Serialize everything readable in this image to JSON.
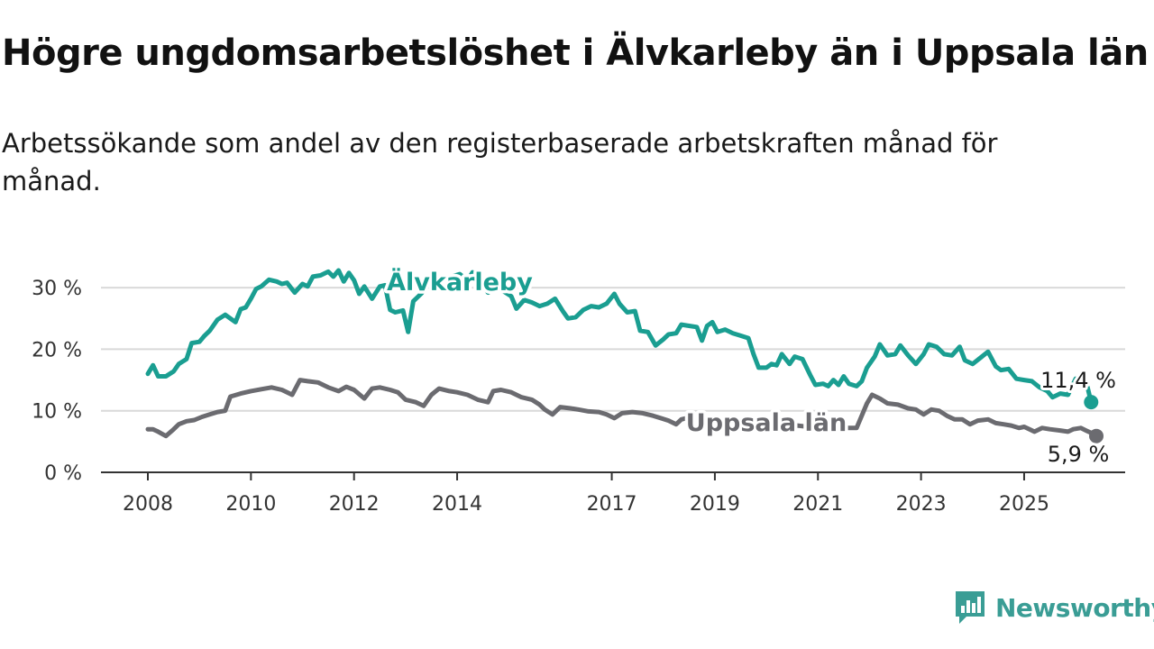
{
  "title": "Högre ungdomsarbetslöshet i Älvkarleby än i Uppsala län",
  "subtitle": "Arbetssökande som andel av den registerbaserade arbetskraften månad för månad.",
  "brand": {
    "name": "Newsworthy"
  },
  "colors": {
    "alvkarleby": "#1a9e91",
    "uppsala": "#6b6b70",
    "grid": "#d9d9d9",
    "axis": "#333333"
  },
  "chart_data": {
    "type": "line",
    "ylim": [
      0,
      35
    ],
    "yticks": [
      0,
      10,
      20,
      30
    ],
    "ytick_labels": [
      "0 %",
      "10 %",
      "20 %",
      "30 %"
    ],
    "xlim": [
      2008,
      2026.4
    ],
    "xticks": [
      2008,
      2010,
      2012,
      2014,
      2017,
      2019,
      2021,
      2023,
      2025
    ],
    "xtick_labels": [
      "2008",
      "2010",
      "2012",
      "2014",
      "2017",
      "2019",
      "2021",
      "2023",
      "2025"
    ],
    "grid": true,
    "series": [
      {
        "name": "Älvkarleby",
        "color": "#1a9e91",
        "end_label": "11,4 %",
        "points": [
          [
            2008.0,
            16.0
          ],
          [
            2008.1,
            17.4
          ],
          [
            2008.2,
            15.6
          ],
          [
            2008.35,
            15.6
          ],
          [
            2008.5,
            16.4
          ],
          [
            2008.6,
            17.6
          ],
          [
            2008.75,
            18.4
          ],
          [
            2008.85,
            21.0
          ],
          [
            2009.0,
            21.2
          ],
          [
            2009.1,
            22.2
          ],
          [
            2009.2,
            23.0
          ],
          [
            2009.35,
            24.8
          ],
          [
            2009.5,
            25.6
          ],
          [
            2009.6,
            25.0
          ],
          [
            2009.7,
            24.4
          ],
          [
            2009.8,
            26.5
          ],
          [
            2009.9,
            26.8
          ],
          [
            2010.0,
            28.2
          ],
          [
            2010.1,
            29.8
          ],
          [
            2010.2,
            30.2
          ],
          [
            2010.35,
            31.3
          ],
          [
            2010.5,
            31.0
          ],
          [
            2010.6,
            30.6
          ],
          [
            2010.7,
            30.8
          ],
          [
            2010.85,
            29.2
          ],
          [
            2011.0,
            30.6
          ],
          [
            2011.1,
            30.2
          ],
          [
            2011.2,
            31.8
          ],
          [
            2011.35,
            32.0
          ],
          [
            2011.5,
            32.6
          ],
          [
            2011.6,
            31.8
          ],
          [
            2011.7,
            32.8
          ],
          [
            2011.8,
            31.0
          ],
          [
            2011.9,
            32.4
          ],
          [
            2012.0,
            31.2
          ],
          [
            2012.1,
            29.0
          ],
          [
            2012.2,
            30.2
          ],
          [
            2012.35,
            28.2
          ],
          [
            2012.5,
            30.2
          ],
          [
            2012.6,
            30.4
          ],
          [
            2012.7,
            26.4
          ],
          [
            2012.8,
            26.0
          ],
          [
            2012.95,
            26.3
          ],
          [
            2013.05,
            22.8
          ],
          [
            2013.15,
            27.8
          ],
          [
            2013.3,
            29.0
          ],
          [
            2013.5,
            31.0
          ],
          [
            2013.7,
            31.5
          ],
          [
            2013.9,
            31.8
          ],
          [
            2014.05,
            32.2
          ],
          [
            2014.2,
            31.2
          ],
          [
            2014.3,
            32.5
          ],
          [
            2014.45,
            31.0
          ],
          [
            2014.6,
            29.2
          ],
          [
            2014.75,
            30.0
          ],
          [
            2014.9,
            29.4
          ],
          [
            2015.05,
            28.6
          ],
          [
            2015.15,
            26.6
          ],
          [
            2015.3,
            28.0
          ],
          [
            2015.45,
            27.6
          ],
          [
            2015.6,
            27.0
          ],
          [
            2015.75,
            27.4
          ],
          [
            2015.9,
            28.2
          ],
          [
            2016.05,
            26.2
          ],
          [
            2016.15,
            25.0
          ],
          [
            2016.3,
            25.2
          ],
          [
            2016.45,
            26.4
          ],
          [
            2016.6,
            27.0
          ],
          [
            2016.75,
            26.8
          ],
          [
            2016.9,
            27.4
          ],
          [
            2017.05,
            29.0
          ],
          [
            2017.15,
            27.4
          ],
          [
            2017.3,
            26.0
          ],
          [
            2017.45,
            26.2
          ],
          [
            2017.55,
            23.0
          ],
          [
            2017.7,
            22.8
          ],
          [
            2017.85,
            20.6
          ],
          [
            2018.0,
            21.6
          ],
          [
            2018.1,
            22.4
          ],
          [
            2018.25,
            22.6
          ],
          [
            2018.35,
            24.0
          ],
          [
            2018.5,
            23.8
          ],
          [
            2018.65,
            23.6
          ],
          [
            2018.75,
            21.4
          ],
          [
            2018.85,
            23.8
          ],
          [
            2018.95,
            24.4
          ],
          [
            2019.05,
            22.8
          ],
          [
            2019.2,
            23.2
          ],
          [
            2019.35,
            22.6
          ],
          [
            2019.5,
            22.2
          ],
          [
            2019.65,
            21.8
          ],
          [
            2019.75,
            19.2
          ],
          [
            2019.85,
            17.0
          ],
          [
            2020.0,
            17.0
          ],
          [
            2020.1,
            17.6
          ],
          [
            2020.2,
            17.4
          ],
          [
            2020.3,
            19.2
          ],
          [
            2020.45,
            17.6
          ],
          [
            2020.55,
            18.8
          ],
          [
            2020.7,
            18.4
          ],
          [
            2020.85,
            15.8
          ],
          [
            2020.95,
            14.2
          ],
          [
            2021.1,
            14.4
          ],
          [
            2021.2,
            14.0
          ],
          [
            2021.3,
            15.0
          ],
          [
            2021.4,
            14.2
          ],
          [
            2021.5,
            15.6
          ],
          [
            2021.6,
            14.4
          ],
          [
            2021.75,
            14.0
          ],
          [
            2021.85,
            14.8
          ],
          [
            2021.95,
            17.0
          ],
          [
            2022.1,
            18.8
          ],
          [
            2022.2,
            20.8
          ],
          [
            2022.35,
            19.0
          ],
          [
            2022.5,
            19.2
          ],
          [
            2022.6,
            20.6
          ],
          [
            2022.75,
            19.0
          ],
          [
            2022.9,
            17.6
          ],
          [
            2023.05,
            19.2
          ],
          [
            2023.15,
            20.8
          ],
          [
            2023.3,
            20.4
          ],
          [
            2023.45,
            19.2
          ],
          [
            2023.6,
            19.0
          ],
          [
            2023.75,
            20.4
          ],
          [
            2023.85,
            18.2
          ],
          [
            2024.0,
            17.6
          ],
          [
            2024.15,
            18.6
          ],
          [
            2024.3,
            19.6
          ],
          [
            2024.45,
            17.2
          ],
          [
            2024.55,
            16.6
          ],
          [
            2024.7,
            16.8
          ],
          [
            2024.85,
            15.2
          ],
          [
            2025.0,
            15.0
          ],
          [
            2025.15,
            14.8
          ],
          [
            2025.3,
            13.8
          ],
          [
            2025.45,
            13.2
          ],
          [
            2025.55,
            12.2
          ],
          [
            2025.7,
            12.8
          ],
          [
            2025.85,
            12.6
          ],
          [
            2026.0,
            15.2
          ],
          [
            2026.1,
            15.0
          ],
          [
            2026.2,
            14.8
          ],
          [
            2026.3,
            11.4
          ]
        ]
      },
      {
        "name": "Uppsala län",
        "color": "#6b6b70",
        "end_label": "5,9 %",
        "points": [
          [
            2008.0,
            7.0
          ],
          [
            2008.1,
            7.0
          ],
          [
            2008.2,
            6.6
          ],
          [
            2008.35,
            5.9
          ],
          [
            2008.5,
            7.0
          ],
          [
            2008.6,
            7.8
          ],
          [
            2008.75,
            8.3
          ],
          [
            2008.9,
            8.5
          ],
          [
            2009.05,
            9.0
          ],
          [
            2009.2,
            9.4
          ],
          [
            2009.35,
            9.8
          ],
          [
            2009.5,
            10.0
          ],
          [
            2009.6,
            12.3
          ],
          [
            2009.8,
            12.8
          ],
          [
            2010.0,
            13.2
          ],
          [
            2010.2,
            13.5
          ],
          [
            2010.4,
            13.8
          ],
          [
            2010.6,
            13.4
          ],
          [
            2010.8,
            12.6
          ],
          [
            2010.95,
            15.0
          ],
          [
            2011.1,
            14.8
          ],
          [
            2011.3,
            14.6
          ],
          [
            2011.5,
            13.8
          ],
          [
            2011.7,
            13.2
          ],
          [
            2011.85,
            13.9
          ],
          [
            2012.0,
            13.4
          ],
          [
            2012.2,
            12.0
          ],
          [
            2012.35,
            13.6
          ],
          [
            2012.5,
            13.8
          ],
          [
            2012.7,
            13.4
          ],
          [
            2012.85,
            13.0
          ],
          [
            2013.0,
            11.8
          ],
          [
            2013.2,
            11.4
          ],
          [
            2013.35,
            10.8
          ],
          [
            2013.5,
            12.6
          ],
          [
            2013.65,
            13.6
          ],
          [
            2013.85,
            13.2
          ],
          [
            2014.0,
            13.0
          ],
          [
            2014.2,
            12.6
          ],
          [
            2014.4,
            11.8
          ],
          [
            2014.6,
            11.4
          ],
          [
            2014.7,
            13.2
          ],
          [
            2014.85,
            13.4
          ],
          [
            2015.05,
            13.0
          ],
          [
            2015.25,
            12.2
          ],
          [
            2015.45,
            11.8
          ],
          [
            2015.6,
            11.0
          ],
          [
            2015.7,
            10.2
          ],
          [
            2015.85,
            9.4
          ],
          [
            2016.0,
            10.6
          ],
          [
            2016.2,
            10.4
          ],
          [
            2016.35,
            10.2
          ],
          [
            2016.55,
            9.9
          ],
          [
            2016.75,
            9.8
          ],
          [
            2016.9,
            9.4
          ],
          [
            2017.05,
            8.8
          ],
          [
            2017.2,
            9.6
          ],
          [
            2017.4,
            9.8
          ],
          [
            2017.6,
            9.6
          ],
          [
            2017.8,
            9.2
          ],
          [
            2017.95,
            8.8
          ],
          [
            2018.1,
            8.4
          ],
          [
            2018.25,
            7.8
          ],
          [
            2018.35,
            8.6
          ],
          [
            2018.55,
            9.0
          ],
          [
            2018.75,
            8.6
          ],
          [
            2018.9,
            8.6
          ],
          [
            2019.05,
            8.0
          ],
          [
            2019.2,
            7.6
          ],
          [
            2019.35,
            8.4
          ],
          [
            2019.55,
            8.5
          ],
          [
            2019.7,
            8.6
          ],
          [
            2019.85,
            8.2
          ],
          [
            2020.0,
            7.6
          ],
          [
            2020.3,
            7.4
          ],
          [
            2020.6,
            7.6
          ],
          [
            2020.9,
            7.3
          ],
          [
            2021.2,
            7.0
          ],
          [
            2021.5,
            7.2
          ],
          [
            2021.75,
            7.2
          ],
          [
            2021.95,
            11.2
          ],
          [
            2022.05,
            12.6
          ],
          [
            2022.2,
            12.0
          ],
          [
            2022.35,
            11.2
          ],
          [
            2022.55,
            11.0
          ],
          [
            2022.75,
            10.4
          ],
          [
            2022.9,
            10.2
          ],
          [
            2023.05,
            9.4
          ],
          [
            2023.2,
            10.2
          ],
          [
            2023.35,
            10.0
          ],
          [
            2023.5,
            9.2
          ],
          [
            2023.65,
            8.6
          ],
          [
            2023.8,
            8.6
          ],
          [
            2023.95,
            7.8
          ],
          [
            2024.1,
            8.4
          ],
          [
            2024.3,
            8.6
          ],
          [
            2024.45,
            8.0
          ],
          [
            2024.6,
            7.8
          ],
          [
            2024.75,
            7.6
          ],
          [
            2024.9,
            7.2
          ],
          [
            2025.0,
            7.4
          ],
          [
            2025.2,
            6.6
          ],
          [
            2025.35,
            7.2
          ],
          [
            2025.5,
            7.0
          ],
          [
            2025.7,
            6.8
          ],
          [
            2025.85,
            6.6
          ],
          [
            2025.95,
            7.0
          ],
          [
            2026.1,
            7.2
          ],
          [
            2026.2,
            6.8
          ],
          [
            2026.3,
            6.4
          ],
          [
            2026.4,
            5.9
          ]
        ]
      }
    ]
  }
}
